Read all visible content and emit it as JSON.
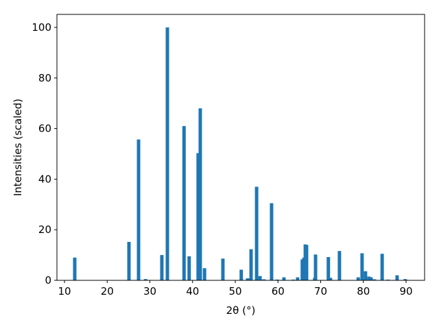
{
  "chart_data": {
    "type": "bar",
    "xlabel": "2θ (°)",
    "ylabel": "Intensities (scaled)",
    "x": [
      12.4,
      25.1,
      27.35,
      29.0,
      32.8,
      34.1,
      38.0,
      39.2,
      41.3,
      41.8,
      42.8,
      47.1,
      51.4,
      52.9,
      53.7,
      55.0,
      55.8,
      56.7,
      58.5,
      59.8,
      61.4,
      63.6,
      64.6,
      65.7,
      66.1,
      66.4,
      66.7,
      68.6,
      68.8,
      71.8,
      72.3,
      74.4,
      78.8,
      79.7,
      80.5,
      81.3,
      81.8,
      82.6,
      84.4,
      85.8,
      87.9,
      89.8
    ],
    "values": [
      9,
      15.2,
      55.7,
      0.5,
      10,
      100,
      61,
      9.5,
      50.3,
      68,
      4.8,
      8.6,
      4.2,
      0.8,
      12.3,
      37,
      1.7,
      0.4,
      30.5,
      0.3,
      1.2,
      0.3,
      1.2,
      8.3,
      9,
      14.2,
      14,
      1,
      10.2,
      9.2,
      1,
      11.6,
      1.2,
      10.7,
      3.6,
      1.5,
      1.2,
      0.4,
      10.5,
      0.3,
      2,
      0.5
    ],
    "bar_width": 0.8,
    "color": "#1f77b4",
    "xlim": [
      8.23,
      94.34
    ],
    "ylim": [
      0,
      105.15
    ],
    "xticks": [
      10,
      20,
      30,
      40,
      50,
      60,
      70,
      80,
      90
    ],
    "yticks": [
      0,
      20,
      40,
      60,
      80,
      100
    ]
  }
}
